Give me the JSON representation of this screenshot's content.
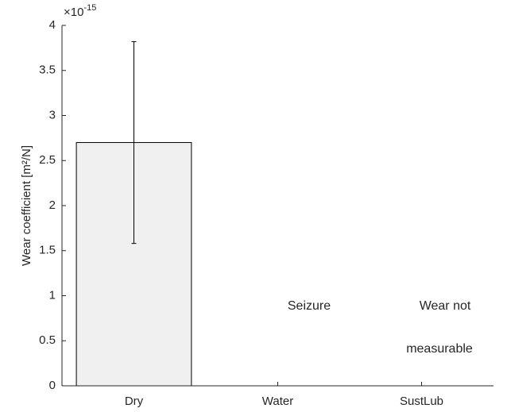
{
  "chart_data": {
    "type": "bar",
    "categories": [
      "Dry",
      "Water",
      "SustLub"
    ],
    "values": [
      2.7,
      null,
      null
    ],
    "errors": [
      1.12,
      null,
      null
    ],
    "color": "#f0f0f0",
    "ylabel": "Wear coefficient [m²/N]",
    "y_multiplier": {
      "base": "×10",
      "exponent": "-15"
    },
    "ylim": [
      0,
      4
    ],
    "yticks": [
      0,
      0.5,
      1,
      1.5,
      2,
      2.5,
      3,
      3.5,
      4
    ],
    "annotations": [
      {
        "lines": [
          "Seizure"
        ]
      },
      {
        "lines": [
          "Wear not",
          "measurable"
        ]
      }
    ]
  }
}
